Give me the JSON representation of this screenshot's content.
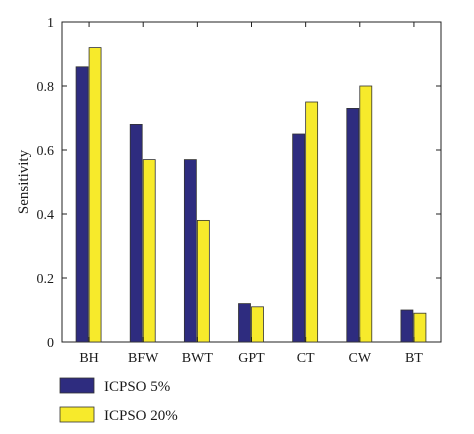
{
  "chart_data": {
    "type": "bar",
    "title": "",
    "xlabel": "",
    "ylabel": "Sensitivity",
    "ylim": [
      0,
      1
    ],
    "yticks": [
      0,
      0.2,
      0.4,
      0.6,
      0.8,
      1
    ],
    "ytick_labels": [
      "0",
      "0.2",
      "0.4",
      "0.6",
      "0.8",
      "1"
    ],
    "grid": false,
    "legend_position": "bottom-left",
    "categories": [
      "BH",
      "BFW",
      "BWT",
      "GPT",
      "CT",
      "CW",
      "BT"
    ],
    "series": [
      {
        "name": "ICPSO 5%",
        "color": "#2e2c7f",
        "values": [
          0.86,
          0.68,
          0.57,
          0.12,
          0.65,
          0.73,
          0.1
        ]
      },
      {
        "name": "ICPSO 20%",
        "color": "#f7ea2b",
        "values": [
          0.92,
          0.57,
          0.38,
          0.11,
          0.75,
          0.8,
          0.09
        ]
      }
    ]
  }
}
